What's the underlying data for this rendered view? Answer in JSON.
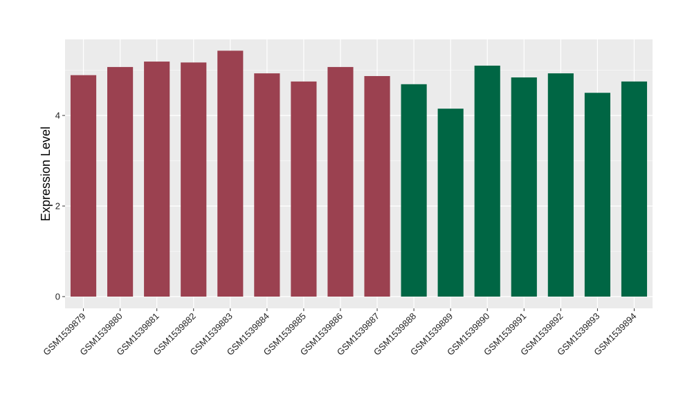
{
  "chart_data": {
    "type": "bar",
    "title": "",
    "xlabel": "",
    "ylabel": "Expression Level",
    "ylim": [
      -0.25,
      5.75
    ],
    "yticks": [
      0,
      2,
      4
    ],
    "grid": true,
    "legend": "none",
    "categories": [
      "GSM1539879",
      "GSM1539880",
      "GSM1539881",
      "GSM1539882",
      "GSM1539883",
      "GSM1539884",
      "GSM1539885",
      "GSM1539886",
      "GSM1539887",
      "GSM1539888",
      "GSM1539889",
      "GSM1539890",
      "GSM1539891",
      "GSM1539892",
      "GSM1539893",
      "GSM1539894"
    ],
    "values": [
      4.89,
      5.07,
      5.19,
      5.17,
      5.43,
      4.93,
      4.75,
      5.07,
      4.87,
      4.69,
      4.15,
      5.1,
      4.84,
      4.93,
      4.5,
      4.75
    ],
    "group": [
      0,
      0,
      0,
      0,
      0,
      0,
      0,
      0,
      0,
      1,
      1,
      1,
      1,
      1,
      1,
      1
    ],
    "colors": [
      "#9b4150",
      "#006644"
    ],
    "panel_background": "#ebebeb",
    "grid_color": "#ffffff"
  }
}
